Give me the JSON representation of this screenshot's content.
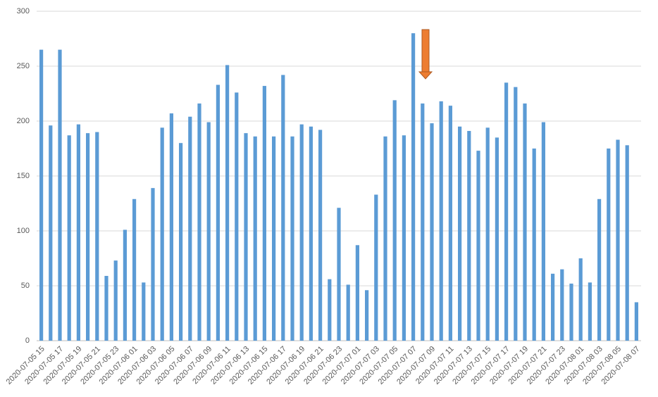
{
  "chart_data": {
    "type": "bar",
    "categories": [
      "2020-07-05 15",
      null,
      "2020-07-05 17",
      null,
      "2020-07-05 19",
      null,
      "2020-07-05 21",
      null,
      "2020-07-05 23",
      null,
      "2020-07-06 01",
      null,
      "2020-07-06 03",
      null,
      "2020-07-06 05",
      null,
      "2020-07-06 07",
      null,
      "2020-07-06 09",
      null,
      "2020-07-06 11",
      null,
      "2020-07-06 13",
      null,
      "2020-07-06 15",
      null,
      "2020-07-06 17",
      null,
      "2020-07-06 19",
      null,
      "2020-07-06 21",
      null,
      "2020-07-06 23",
      null,
      "2020-07-07 01",
      null,
      "2020-07-07 03",
      null,
      "2020-07-07 05",
      null,
      "2020-07-07 07",
      null,
      "2020-07-07 09",
      null,
      "2020-07-07 11",
      null,
      "2020-07-07 13",
      null,
      "2020-07-07 15",
      null,
      "2020-07-07 17",
      null,
      "2020-07-07 19",
      null,
      "2020-07-07 21",
      null,
      "2020-07-07 23",
      null,
      "2020-07-08 01",
      null,
      "2020-07-08 03",
      null,
      "2020-07-08 05",
      null,
      "2020-07-08 07"
    ],
    "values": [
      265,
      196,
      265,
      187,
      197,
      189,
      190,
      59,
      73,
      101,
      129,
      53,
      139,
      194,
      207,
      180,
      204,
      216,
      199,
      233,
      251,
      226,
      189,
      186,
      232,
      186,
      242,
      186,
      197,
      195,
      192,
      56,
      121,
      51,
      87,
      46,
      133,
      186,
      219,
      187,
      280,
      216,
      198,
      218,
      214,
      195,
      191,
      173,
      194,
      185,
      235,
      231,
      216,
      175,
      199,
      61,
      65,
      52,
      75,
      53,
      129,
      175,
      183,
      178,
      35
    ],
    "color": "#5b9bd5",
    "ylim": [
      0,
      300
    ],
    "yticks": [
      0,
      50,
      100,
      150,
      200,
      250,
      300
    ],
    "grid": true
  }
}
